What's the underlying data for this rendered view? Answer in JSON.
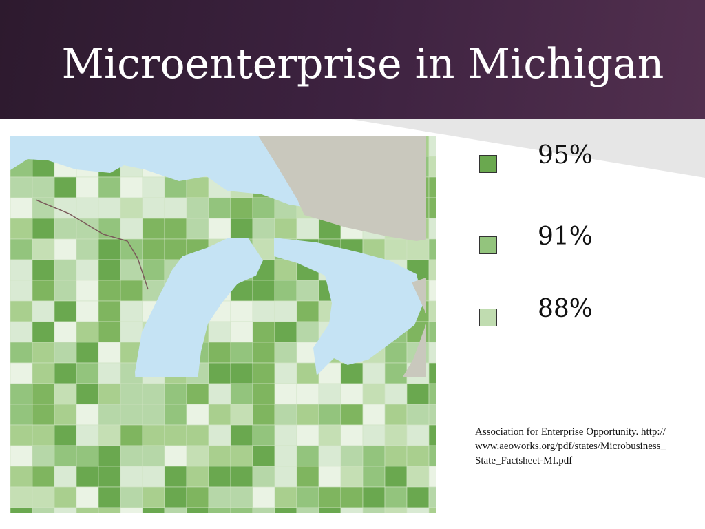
{
  "title": "Microenterprise in Michigan",
  "legend": [
    {
      "label": "95%",
      "color": "#6aa84f"
    },
    {
      "label": "91%",
      "color": "#93c47d"
    },
    {
      "label": "88%",
      "color": "#c0dcb0"
    }
  ],
  "source": "Association for Enterprise Opportunity. http://www.aeoworks.org/pdf/states/Microbusiness_State_Factsheet-MI.pdf"
}
